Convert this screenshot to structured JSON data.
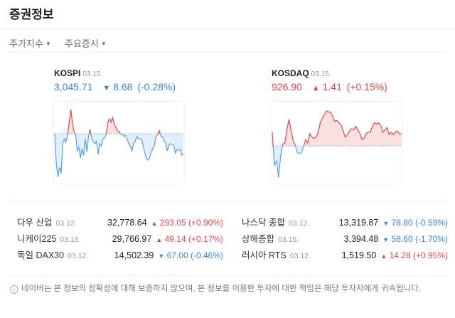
{
  "header": {
    "title": "증권정보"
  },
  "tabs": [
    {
      "label": "주가지수"
    },
    {
      "label": "주요증시"
    }
  ],
  "main_indices": [
    {
      "name": "KOSPI",
      "date": "03.15.",
      "value": "3,045.71",
      "direction": "down",
      "change": "8.68",
      "percent": "(-0.28%)",
      "sparkline_change": [
        0,
        -13.2,
        -18.2,
        -14.2,
        -16.7,
        -4.2,
        -2.2,
        -3.7,
        -0.2,
        4.8,
        10.3,
        4.8,
        0.8,
        -0.2,
        -7.2,
        -5.7,
        -10.2,
        -6.2,
        -9.2,
        -2.2,
        -7.7,
        -1.2,
        1.8,
        -2.2,
        -3.2,
        -4.2,
        -3.2,
        -8.7,
        -4.2,
        -5.2,
        -2.2,
        -1.7,
        -0.2,
        4.8,
        6.3,
        4.8,
        6.8,
        3.8,
        2.8,
        1.3,
        0.8,
        -0.2,
        -0.2,
        -1.2,
        -0.7,
        -2.2,
        -4.2,
        -5.2,
        -7.2,
        -4.2,
        -3.2,
        -1.2,
        -2.2,
        -2.2,
        -2.2,
        -5.2,
        -8.2,
        -10.7,
        -11.2,
        -10.2,
        -7.7,
        -6.2,
        -4.7,
        -1.2,
        -0.2,
        1.3,
        -1.2,
        -1.2,
        -2.7,
        -4.2,
        -7.2,
        -4.7,
        -4.2,
        -4.7,
        -4.7,
        -8.2,
        -6.7,
        -7.0,
        -6.7,
        -9.0,
        -8.7
      ],
      "sparkline_range": [
        -21.6,
        13.5
      ]
    },
    {
      "name": "KOSDAQ",
      "date": "03.15.",
      "value": "926.90",
      "direction": "up",
      "change": "1.41",
      "percent": "(+0.15%)",
      "sparkline_change": [
        1.6,
        -2.32,
        -1.76,
        -3.72,
        -1.2,
        0.2,
        0.34,
        1.88,
        3.14,
        1.88,
        0.62,
        0.06,
        -0.78,
        -0.92,
        -0.78,
        -0.08,
        0.76,
        0.34,
        1.46,
        1.04,
        0.9,
        1.04,
        1.6,
        2.72,
        3.28,
        3.7,
        4.12,
        3.98,
        3.98,
        3.42,
        2.86,
        3.0,
        2.72,
        2.44,
        1.74,
        1.04,
        1.32,
        1.74,
        2.02,
        1.88,
        2.3,
        1.88,
        1.46,
        0.76,
        0.9,
        1.46,
        1.6,
        1.6,
        2.3,
        2.72,
        2.58,
        2.72,
        2.44,
        1.6,
        1.88,
        2.16,
        1.32,
        1.6,
        1.32,
        1.6,
        1.74,
        1.4,
        1.41
      ],
      "sparkline_range": [
        -4.6,
        5.2
      ]
    }
  ],
  "world_indices": [
    {
      "name": "다우 산업",
      "date": "03.12.",
      "value": "32,778.64",
      "direction": "up",
      "change": "293.05",
      "percent": "(+0.90%)"
    },
    {
      "name": "나스닥 종합",
      "date": "03.12.",
      "value": "13,319.87",
      "direction": "down",
      "change": "78.80",
      "percent": "(-0.59%)"
    },
    {
      "name": "니케이225",
      "date": "03.15.",
      "value": "29,766.97",
      "direction": "up",
      "change": "49.14",
      "percent": "(+0.17%)"
    },
    {
      "name": "상해종합",
      "date": "03.15.",
      "value": "3,394.48",
      "direction": "down",
      "change": "58.60",
      "percent": "(-1.70%)"
    },
    {
      "name": "독일 DAX30",
      "date": "03.12.",
      "value": "14,502.39",
      "direction": "down",
      "change": "67.00",
      "percent": "(-0.46%)"
    },
    {
      "name": "러시아 RTS",
      "date": "03.12.",
      "value": "1,519.50",
      "direction": "up",
      "change": "14.28",
      "percent": "(+0.95%)"
    }
  ],
  "arrows": {
    "up": "▲",
    "down": "▼"
  },
  "colors": {
    "up": "#e0464e",
    "down": "#3d82d6"
  },
  "info_icon": "ⓘ",
  "disclaimer": "네이버는 본 정보의 정확성에 대해 보증하지 않으며, 본 정보를 이용한 투자에 대한 책임은 해당 투자자에게 귀속됩니다."
}
